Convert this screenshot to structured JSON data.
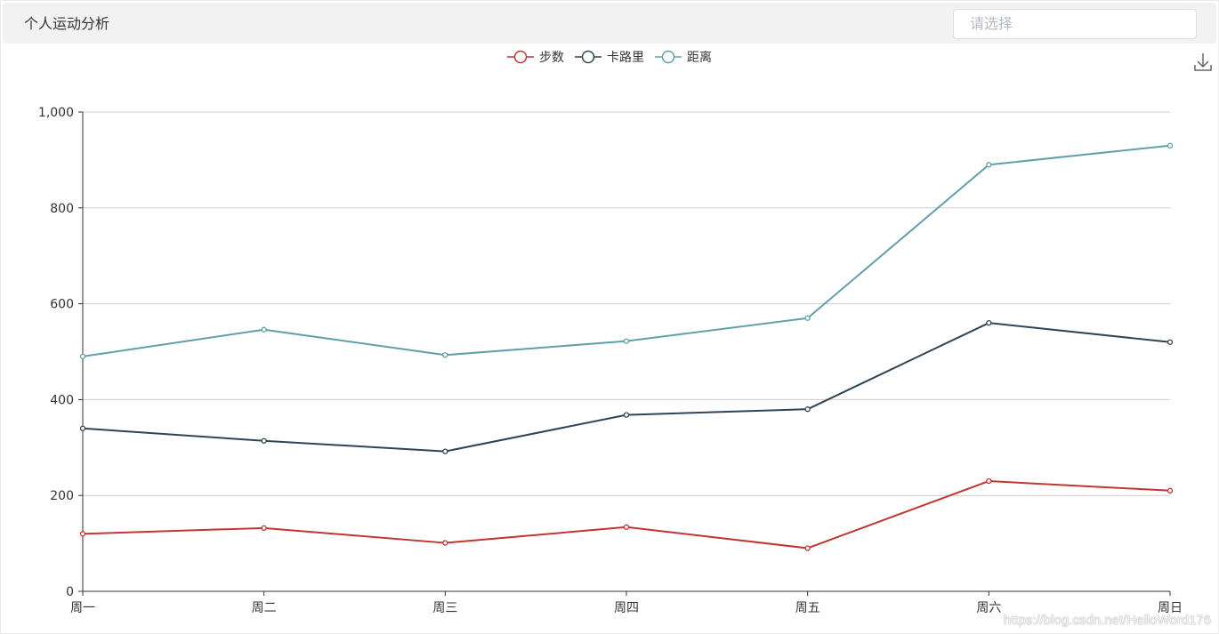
{
  "header": {
    "title": "个人运动分析",
    "select_placeholder": "请选择"
  },
  "toolbox": {
    "download_icon": "download-icon"
  },
  "watermark": "https://blog.csdn.net/HelloWord176",
  "colors": {
    "axis": "#333333",
    "grid": "#cccccc",
    "tick_text": "#333333"
  },
  "chart_data": {
    "type": "line",
    "categories": [
      "周一",
      "周二",
      "周三",
      "周四",
      "周五",
      "周六",
      "周日"
    ],
    "series": [
      {
        "name": "步数",
        "color": "#c23531",
        "values": [
          120,
          132,
          101,
          134,
          90,
          230,
          210
        ]
      },
      {
        "name": "卡路里",
        "color": "#2f4554",
        "values": [
          340,
          314,
          292,
          368,
          380,
          560,
          520
        ]
      },
      {
        "name": "距离",
        "color": "#61a0a8",
        "values": [
          490,
          546,
          493,
          522,
          570,
          890,
          930
        ]
      }
    ],
    "yticks": [
      "0",
      "200",
      "400",
      "600",
      "800",
      "1,000"
    ],
    "ylim": [
      0,
      1000
    ],
    "grid": true,
    "legend": "top-center"
  }
}
